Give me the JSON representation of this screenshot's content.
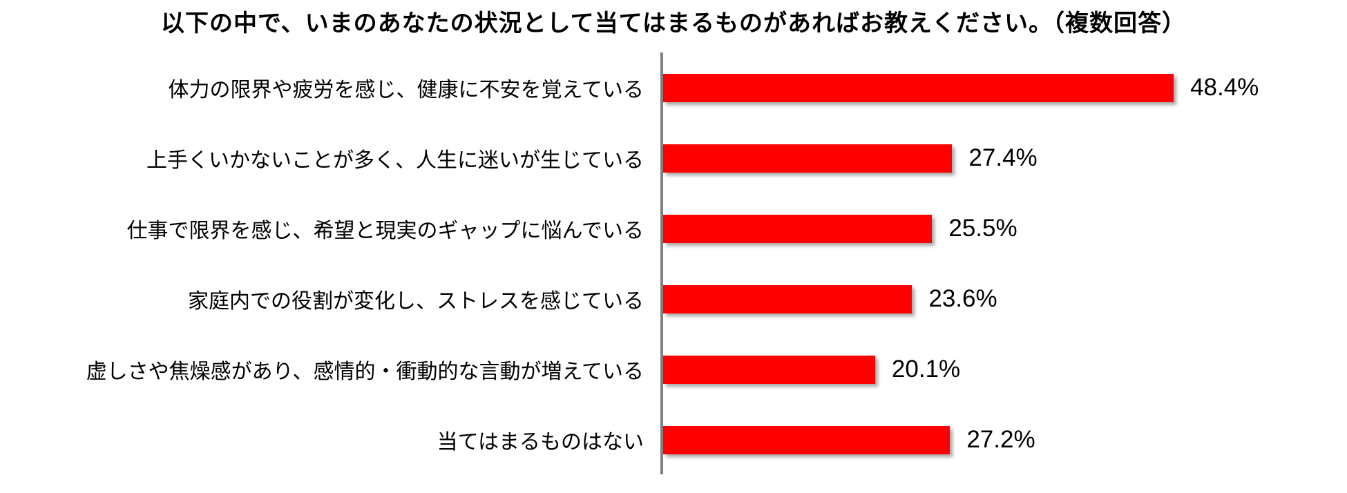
{
  "title": "以下の中で、いまのあなたの状況として当てはまるものがあればお教えください。（複数回答）",
  "chart_data": {
    "type": "bar",
    "orientation": "horizontal",
    "title": "以下の中で、いまのあなたの状況として当てはまるものがあればお教えください。（複数回答）",
    "categories": [
      "体力の限界や疲労を感じ、健康に不安を覚えている",
      "上手くいかないことが多く、人生に迷いが生じている",
      "仕事で限界を感じ、希望と現実のギャップに悩んでいる",
      "家庭内での役割が変化し、ストレスを感じている",
      "虚しさや焦燥感があり、感情的・衝動的な言動が増えている",
      "当てはまるものはない"
    ],
    "values": [
      48.4,
      27.4,
      25.5,
      23.6,
      20.1,
      27.2
    ],
    "value_labels": [
      "48.4%",
      "27.4%",
      "25.5%",
      "23.6%",
      "20.1%",
      "27.2%"
    ],
    "xlim": [
      0,
      50
    ],
    "grid": false,
    "legend": false,
    "bar_color": "#ff0000",
    "axis_color": "#808080"
  }
}
